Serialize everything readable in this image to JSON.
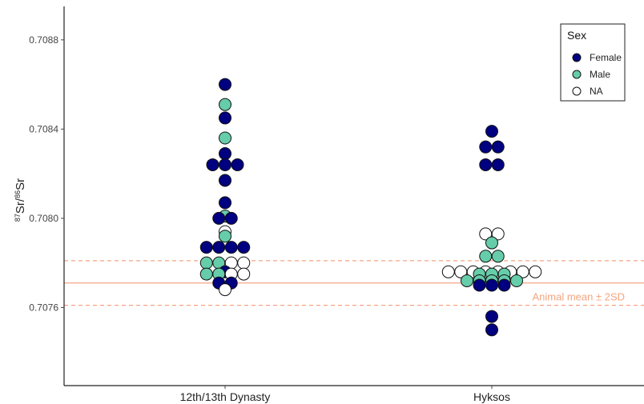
{
  "chart_data": {
    "type": "scatter",
    "title": "",
    "xlabel": "",
    "ylabel": {
      "pre": "87",
      "mid1": "Sr/",
      "sup2": "86",
      "mid2": "Sr"
    },
    "categories": [
      "12th/13th Dynasty",
      "Hyksos"
    ],
    "ylim": [
      0.70725,
      0.70895
    ],
    "yticks": [
      0.7076,
      0.708,
      0.7084,
      0.7088
    ],
    "ytick_labels": [
      "0.7076",
      "0.7080",
      "0.7084",
      "0.7088"
    ],
    "grid": false,
    "legend": {
      "title": "Sex",
      "placement": "top-right",
      "entries": [
        {
          "name": "Female",
          "color": "#000080"
        },
        {
          "name": "Male",
          "color": "#66cdaa"
        },
        {
          "name": "NA",
          "color": "#ffffff"
        }
      ]
    },
    "reference_lines": {
      "mean": 0.70771,
      "lower": 0.70761,
      "upper": 0.70781,
      "color": "#f4a582",
      "label": "Animal mean ± 2SD"
    },
    "series": [
      {
        "name": "Female",
        "points": [
          {
            "category": "12th/13th Dynasty",
            "y": 0.7086
          },
          {
            "category": "12th/13th Dynasty",
            "y": 0.70845
          },
          {
            "category": "12th/13th Dynasty",
            "y": 0.70829
          },
          {
            "category": "12th/13th Dynasty",
            "y": 0.70824
          },
          {
            "category": "12th/13th Dynasty",
            "y": 0.70824
          },
          {
            "category": "12th/13th Dynasty",
            "y": 0.70824
          },
          {
            "category": "12th/13th Dynasty",
            "y": 0.70817
          },
          {
            "category": "12th/13th Dynasty",
            "y": 0.70807
          },
          {
            "category": "12th/13th Dynasty",
            "y": 0.708
          },
          {
            "category": "12th/13th Dynasty",
            "y": 0.708
          },
          {
            "category": "12th/13th Dynasty",
            "y": 0.70787
          },
          {
            "category": "12th/13th Dynasty",
            "y": 0.70787
          },
          {
            "category": "12th/13th Dynasty",
            "y": 0.70787
          },
          {
            "category": "12th/13th Dynasty",
            "y": 0.70787
          },
          {
            "category": "12th/13th Dynasty",
            "y": 0.70776
          },
          {
            "category": "12th/13th Dynasty",
            "y": 0.70771
          },
          {
            "category": "12th/13th Dynasty",
            "y": 0.70771
          },
          {
            "category": "Hyksos",
            "y": 0.70839
          },
          {
            "category": "Hyksos",
            "y": 0.70832
          },
          {
            "category": "Hyksos",
            "y": 0.70832
          },
          {
            "category": "Hyksos",
            "y": 0.70824
          },
          {
            "category": "Hyksos",
            "y": 0.70824
          },
          {
            "category": "Hyksos",
            "y": 0.7077
          },
          {
            "category": "Hyksos",
            "y": 0.7077
          },
          {
            "category": "Hyksos",
            "y": 0.7077
          },
          {
            "category": "Hyksos",
            "y": 0.70756
          },
          {
            "category": "Hyksos",
            "y": 0.7075
          }
        ]
      },
      {
        "name": "Male",
        "points": [
          {
            "category": "12th/13th Dynasty",
            "y": 0.70851
          },
          {
            "category": "12th/13th Dynasty",
            "y": 0.70836
          },
          {
            "category": "12th/13th Dynasty",
            "y": 0.70801
          },
          {
            "category": "12th/13th Dynasty",
            "y": 0.70792
          },
          {
            "category": "12th/13th Dynasty",
            "y": 0.7078
          },
          {
            "category": "12th/13th Dynasty",
            "y": 0.7078
          },
          {
            "category": "12th/13th Dynasty",
            "y": 0.70775
          },
          {
            "category": "12th/13th Dynasty",
            "y": 0.70775
          },
          {
            "category": "Hyksos",
            "y": 0.70789
          },
          {
            "category": "Hyksos",
            "y": 0.70783
          },
          {
            "category": "Hyksos",
            "y": 0.70783
          },
          {
            "category": "Hyksos",
            "y": 0.70775
          },
          {
            "category": "Hyksos",
            "y": 0.70775
          },
          {
            "category": "Hyksos",
            "y": 0.70775
          },
          {
            "category": "Hyksos",
            "y": 0.70772
          },
          {
            "category": "Hyksos",
            "y": 0.70772
          },
          {
            "category": "Hyksos",
            "y": 0.70772
          },
          {
            "category": "Hyksos",
            "y": 0.70772
          },
          {
            "category": "Hyksos",
            "y": 0.70772
          }
        ]
      },
      {
        "name": "NA",
        "points": [
          {
            "category": "12th/13th Dynasty",
            "y": 0.70794
          },
          {
            "category": "12th/13th Dynasty",
            "y": 0.7078
          },
          {
            "category": "12th/13th Dynasty",
            "y": 0.7078
          },
          {
            "category": "12th/13th Dynasty",
            "y": 0.70775
          },
          {
            "category": "12th/13th Dynasty",
            "y": 0.70775
          },
          {
            "category": "12th/13th Dynasty",
            "y": 0.70768
          },
          {
            "category": "Hyksos",
            "y": 0.70793
          },
          {
            "category": "Hyksos",
            "y": 0.70793
          },
          {
            "category": "Hyksos",
            "y": 0.70776
          },
          {
            "category": "Hyksos",
            "y": 0.70776
          },
          {
            "category": "Hyksos",
            "y": 0.70776
          },
          {
            "category": "Hyksos",
            "y": 0.70776
          },
          {
            "category": "Hyksos",
            "y": 0.70776
          },
          {
            "category": "Hyksos",
            "y": 0.70776
          },
          {
            "category": "Hyksos",
            "y": 0.70776
          },
          {
            "category": "Hyksos",
            "y": 0.70776
          }
        ]
      }
    ]
  }
}
